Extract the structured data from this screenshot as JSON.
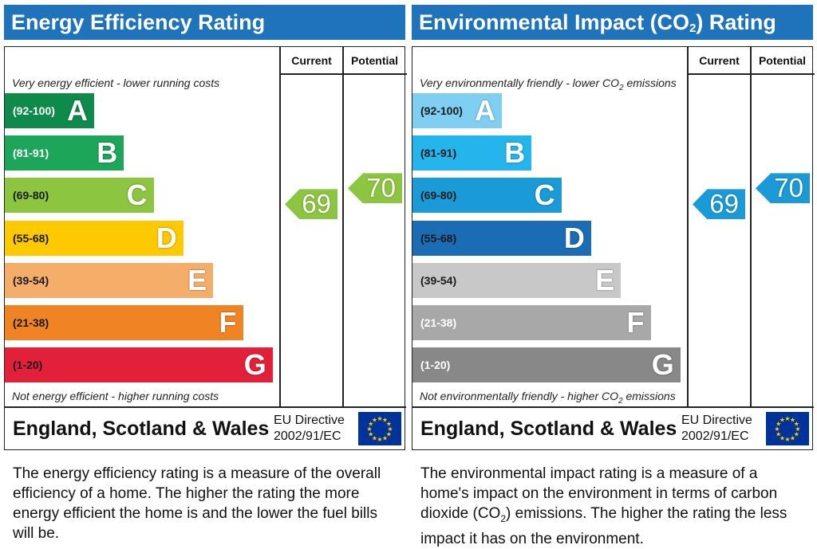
{
  "chart_data": [
    {
      "type": "bar",
      "title": "Energy Efficiency Rating",
      "columns": [
        "Current",
        "Potential"
      ],
      "top_caption": "Very energy efficient - lower running costs",
      "bottom_caption": "Not energy efficient - higher running costs",
      "bands": [
        {
          "range": "(92-100)",
          "letter": "A",
          "color": "#0e8a4a"
        },
        {
          "range": "(81-91)",
          "letter": "B",
          "color": "#1da55a"
        },
        {
          "range": "(69-80)",
          "letter": "C",
          "color": "#8cc53f"
        },
        {
          "range": "(55-68)",
          "letter": "D",
          "color": "#fdc900"
        },
        {
          "range": "(39-54)",
          "letter": "E",
          "color": "#f5ae6a"
        },
        {
          "range": "(21-38)",
          "letter": "F",
          "color": "#f08324"
        },
        {
          "range": "(1-20)",
          "letter": "G",
          "color": "#e3203a"
        }
      ],
      "current": 69,
      "potential": 70,
      "current_band": "C",
      "potential_band": "C",
      "arrow_color": "#8cc53f",
      "footer_region": "England, Scotland & Wales",
      "directive_line1": "EU Directive",
      "directive_line2": "2002/91/EC",
      "description": "The energy efficiency rating is a measure of the overall efficiency of a home. The higher the rating the more energy efficient the home is and the lower the fuel bills will be."
    },
    {
      "type": "bar",
      "title": "Environmental Impact (CO2) Rating",
      "columns": [
        "Current",
        "Potential"
      ],
      "top_caption": "Very environmentally friendly - lower CO2 emissions",
      "bottom_caption": "Not environmentally friendly - higher CO2 emissions",
      "bands": [
        {
          "range": "(92-100)",
          "letter": "A",
          "color": "#7fcff3"
        },
        {
          "range": "(81-91)",
          "letter": "B",
          "color": "#23b5ec"
        },
        {
          "range": "(69-80)",
          "letter": "C",
          "color": "#1a9ad6"
        },
        {
          "range": "(55-68)",
          "letter": "D",
          "color": "#1a6cb4"
        },
        {
          "range": "(39-54)",
          "letter": "E",
          "color": "#c8c8c8"
        },
        {
          "range": "(21-38)",
          "letter": "F",
          "color": "#a8a8a8"
        },
        {
          "range": "(1-20)",
          "letter": "G",
          "color": "#888888"
        }
      ],
      "current": 69,
      "potential": 70,
      "current_band": "C",
      "potential_band": "C",
      "arrow_color": "#1a9ad6",
      "footer_region": "England, Scotland & Wales",
      "directive_line1": "EU Directive",
      "directive_line2": "2002/91/EC",
      "description": "The environmental impact rating is a measure of a home's impact on the environment in terms of carbon dioxide (CO2) emissions. The higher the rating the less impact it has on the environment."
    }
  ],
  "colors": {
    "title_bar": "#1f73bb",
    "eu_flag_blue": "#003399",
    "eu_flag_stars": "#ffcc00"
  }
}
